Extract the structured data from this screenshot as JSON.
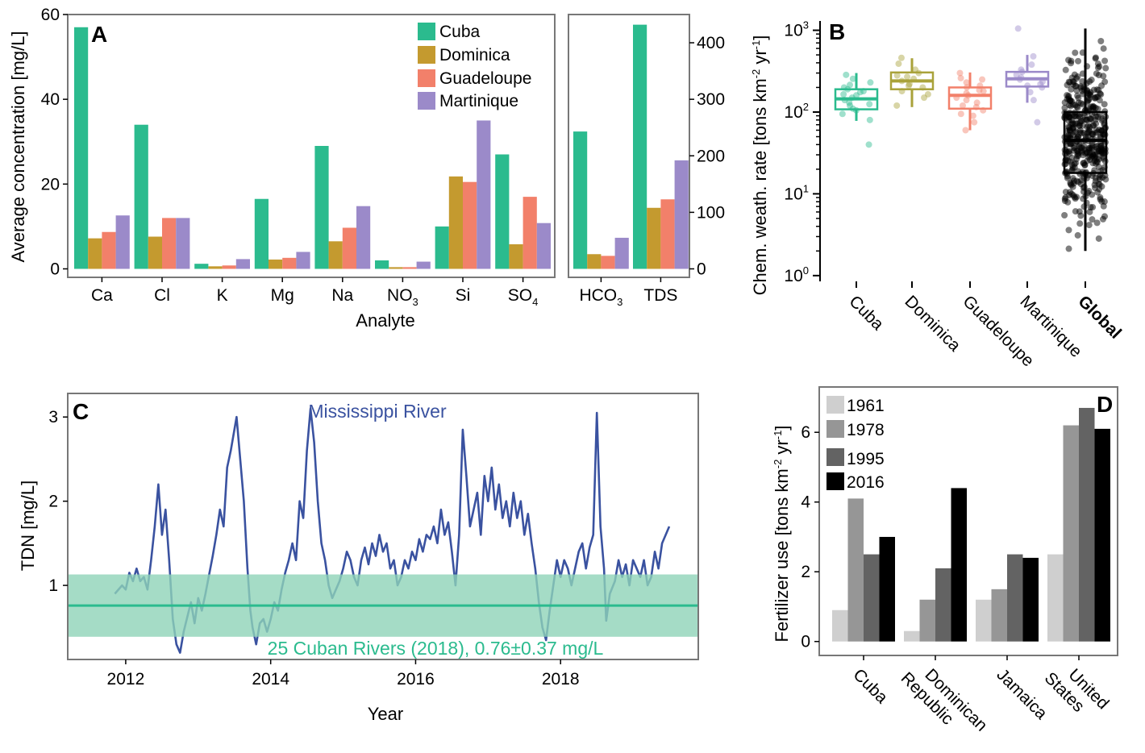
{
  "colors": {
    "Cuba": "#2bbb8e",
    "Dominica": "#c49a2f",
    "Guadeloupe": "#f2806a",
    "Martinique": "#9b8ac9",
    "B_Cuba": "#2bbb8e",
    "B_Dominica": "#a9a23a",
    "B_Guadeloupe": "#f2806a",
    "B_Martinique": "#9b8ac9",
    "B_Global": "#000000",
    "mississippi": "#3a52a0",
    "cuban_band": "#8fd3b8",
    "cuban_line": "#2bbb8e",
    "D_1961": "#cfcfcf",
    "D_1978": "#969696",
    "D_1995": "#636363",
    "D_2016": "#000000"
  },
  "panels": {
    "A": {
      "letter": "A",
      "ylabel": "Average concentration [mg/L]",
      "xlabel": "Analyte",
      "left_ticks": [
        "0",
        "20",
        "40",
        "60"
      ],
      "right_ticks": [
        "0",
        "100",
        "200",
        "300",
        "400"
      ],
      "legend": [
        "Cuba",
        "Dominica",
        "Guadeloupe",
        "Martinique"
      ],
      "cat_left": [
        "Ca",
        "Cl",
        "K",
        "Mg",
        "Na",
        "NO",
        "Si",
        "SO"
      ],
      "sub_left": [
        "",
        "",
        "",
        "",
        "",
        "3",
        "",
        "4"
      ],
      "cat_right": [
        "HCO",
        "TDS"
      ],
      "sub_right": [
        "3",
        ""
      ]
    },
    "B": {
      "letter": "B",
      "ylabel_main": "Chem. weath. rate [tons km",
      "ylabel_sup1": "-2",
      "ylabel_mid": " yr",
      "ylabel_sup2": "-1",
      "ylabel_end": "]",
      "tick_base": "10",
      "tick_exp": [
        "0",
        "1",
        "2",
        "3"
      ],
      "groups": [
        "Cuba",
        "Dominica",
        "Guadeloupe",
        "Martinique",
        "Global"
      ]
    },
    "C": {
      "letter": "C",
      "ylabel": "TDN [mg/L]",
      "xlabel": "Year",
      "yticks": [
        "1",
        "2",
        "3"
      ],
      "xticks": [
        "2012",
        "2014",
        "2016",
        "2018"
      ],
      "label_miss": "Mississippi River",
      "label_cuba": "25 Cuban Rivers (2018), 0.76±0.37 mg/L"
    },
    "D": {
      "letter": "D",
      "ylabel_main": "Fertilizer use [tons km",
      "ylabel_sup1": "-2",
      "ylabel_mid": " yr",
      "ylabel_sup2": "-1",
      "ylabel_end": "]",
      "yticks": [
        "0",
        "2",
        "4",
        "6"
      ],
      "legend": [
        "1961",
        "1978",
        "1995",
        "2016"
      ],
      "cat_lines": [
        [
          "Cuba"
        ],
        [
          "Dominican",
          "Republic"
        ],
        [
          "Jamaica"
        ],
        [
          "United",
          "States"
        ]
      ]
    }
  },
  "chart_data": [
    {
      "panel": "A",
      "type": "bar",
      "categories": [
        "Ca",
        "Cl",
        "K",
        "Mg",
        "Na",
        "NO3",
        "Si",
        "SO4"
      ],
      "series": [
        {
          "name": "Cuba",
          "values": [
            57,
            34,
            1.2,
            16.5,
            29,
            2,
            10,
            27
          ]
        },
        {
          "name": "Dominica",
          "values": [
            7.2,
            7.6,
            0.6,
            2.2,
            6.5,
            0.4,
            21.8,
            5.8
          ]
        },
        {
          "name": "Guadeloupe",
          "values": [
            8.7,
            12,
            0.8,
            2.6,
            9.7,
            0.4,
            20.5,
            17
          ]
        },
        {
          "name": "Martinique",
          "values": [
            12.6,
            12,
            2.3,
            4,
            14.8,
            1.7,
            35,
            10.8
          ]
        }
      ],
      "ylabel": "Average concentration [mg/L]",
      "xlabel": "Analyte",
      "ylim": [
        -2,
        60
      ]
    },
    {
      "panel": "A-right",
      "type": "bar",
      "categories": [
        "HCO3",
        "TDS"
      ],
      "series": [
        {
          "name": "Cuba",
          "values": [
            243,
            432
          ]
        },
        {
          "name": "Dominica",
          "values": [
            26,
            108
          ]
        },
        {
          "name": "Guadeloupe",
          "values": [
            23,
            123
          ]
        },
        {
          "name": "Martinique",
          "values": [
            55,
            192
          ]
        }
      ],
      "ylim": [
        -15,
        450
      ]
    },
    {
      "panel": "B",
      "type": "box",
      "scale": "log10",
      "ylim": [
        0.85,
        1300
      ],
      "groups": [
        {
          "name": "Cuba",
          "q1": 108,
          "median": 145,
          "q3": 190,
          "wlo": 78,
          "whi": 300,
          "points": [
            40,
            80,
            95,
            110,
            125,
            140,
            150,
            160,
            175,
            190,
            200,
            230,
            255,
            285,
            105,
            130,
            165,
            180,
            120,
            215
          ]
        },
        {
          "name": "Dominica",
          "q1": 190,
          "median": 240,
          "q3": 305,
          "wlo": 115,
          "whi": 455,
          "points": [
            120,
            150,
            180,
            200,
            220,
            240,
            255,
            270,
            300,
            330,
            390,
            460,
            210,
            280,
            165
          ]
        },
        {
          "name": "Guadeloupe",
          "q1": 110,
          "median": 160,
          "q3": 200,
          "wlo": 60,
          "whi": 305,
          "points": [
            60,
            75,
            90,
            105,
            120,
            140,
            160,
            170,
            185,
            200,
            230,
            260,
            300,
            115,
            150,
            95,
            130,
            210,
            180,
            250
          ]
        },
        {
          "name": "Martinique",
          "q1": 205,
          "median": 255,
          "q3": 310,
          "wlo": 130,
          "whi": 500,
          "points": [
            75,
            140,
            175,
            210,
            235,
            250,
            265,
            285,
            310,
            380,
            480,
            1050,
            220,
            200,
            330
          ]
        },
        {
          "name": "Global",
          "q1": 18,
          "median": 45,
          "q3": 100,
          "wlo": 2,
          "whi": 1050
        }
      ]
    },
    {
      "panel": "C",
      "type": "line",
      "xlabel": "Year",
      "ylabel": "TDN [mg/L]",
      "xlim": [
        2011.2,
        2019.9
      ],
      "ylim": [
        0.12,
        3.28
      ],
      "series": [
        {
          "name": "Mississippi River",
          "points": [
            [
              2011.85,
              0.9
            ],
            [
              2011.95,
              1.0
            ],
            [
              2012.0,
              0.95
            ],
            [
              2012.05,
              1.15
            ],
            [
              2012.1,
              1.05
            ],
            [
              2012.15,
              1.2
            ],
            [
              2012.2,
              1.05
            ],
            [
              2012.25,
              1.1
            ],
            [
              2012.3,
              0.95
            ],
            [
              2012.35,
              1.3
            ],
            [
              2012.4,
              1.7
            ],
            [
              2012.45,
              2.2
            ],
            [
              2012.5,
              1.6
            ],
            [
              2012.55,
              1.9
            ],
            [
              2012.6,
              1.3
            ],
            [
              2012.65,
              0.6
            ],
            [
              2012.7,
              0.3
            ],
            [
              2012.75,
              0.2
            ],
            [
              2012.8,
              0.45
            ],
            [
              2012.9,
              0.8
            ],
            [
              2012.95,
              0.55
            ],
            [
              2013.0,
              0.85
            ],
            [
              2013.05,
              0.7
            ],
            [
              2013.1,
              0.9
            ],
            [
              2013.2,
              1.35
            ],
            [
              2013.25,
              1.6
            ],
            [
              2013.3,
              1.9
            ],
            [
              2013.35,
              1.7
            ],
            [
              2013.4,
              2.4
            ],
            [
              2013.45,
              2.6
            ],
            [
              2013.5,
              2.85
            ],
            [
              2013.53,
              3.0
            ],
            [
              2013.58,
              2.5
            ],
            [
              2013.63,
              2.0
            ],
            [
              2013.68,
              1.2
            ],
            [
              2013.72,
              0.7
            ],
            [
              2013.75,
              0.5
            ],
            [
              2013.8,
              0.3
            ],
            [
              2013.85,
              0.55
            ],
            [
              2013.9,
              0.6
            ],
            [
              2013.95,
              0.45
            ],
            [
              2014.0,
              0.6
            ],
            [
              2014.05,
              0.8
            ],
            [
              2014.1,
              0.7
            ],
            [
              2014.15,
              0.95
            ],
            [
              2014.2,
              1.15
            ],
            [
              2014.25,
              1.3
            ],
            [
              2014.3,
              1.5
            ],
            [
              2014.35,
              1.3
            ],
            [
              2014.4,
              2.0
            ],
            [
              2014.45,
              1.8
            ],
            [
              2014.5,
              2.6
            ],
            [
              2014.55,
              3.1
            ],
            [
              2014.6,
              2.7
            ],
            [
              2014.65,
              2.0
            ],
            [
              2014.7,
              1.5
            ],
            [
              2014.75,
              1.3
            ],
            [
              2014.8,
              1.0
            ],
            [
              2014.85,
              0.85
            ],
            [
              2014.9,
              0.95
            ],
            [
              2014.95,
              1.05
            ],
            [
              2015.0,
              1.2
            ],
            [
              2015.05,
              1.4
            ],
            [
              2015.1,
              1.3
            ],
            [
              2015.15,
              1.1
            ],
            [
              2015.2,
              1.0
            ],
            [
              2015.25,
              1.3
            ],
            [
              2015.3,
              1.45
            ],
            [
              2015.35,
              1.25
            ],
            [
              2015.4,
              1.5
            ],
            [
              2015.45,
              1.35
            ],
            [
              2015.5,
              1.6
            ],
            [
              2015.55,
              1.4
            ],
            [
              2015.6,
              1.5
            ],
            [
              2015.65,
              1.2
            ],
            [
              2015.7,
              1.3
            ],
            [
              2015.75,
              1.0
            ],
            [
              2015.8,
              1.1
            ],
            [
              2015.85,
              1.3
            ],
            [
              2015.9,
              1.2
            ],
            [
              2015.95,
              1.4
            ],
            [
              2016.0,
              1.3
            ],
            [
              2016.05,
              1.55
            ],
            [
              2016.1,
              1.4
            ],
            [
              2016.15,
              1.6
            ],
            [
              2016.2,
              1.55
            ],
            [
              2016.25,
              1.7
            ],
            [
              2016.3,
              1.5
            ],
            [
              2016.35,
              1.9
            ],
            [
              2016.4,
              1.6
            ],
            [
              2016.45,
              1.75
            ],
            [
              2016.5,
              1.4
            ],
            [
              2016.55,
              1.0
            ],
            [
              2016.6,
              1.6
            ],
            [
              2016.65,
              2.85
            ],
            [
              2016.7,
              2.3
            ],
            [
              2016.75,
              1.7
            ],
            [
              2016.8,
              1.9
            ],
            [
              2016.85,
              2.1
            ],
            [
              2016.9,
              1.6
            ],
            [
              2016.95,
              2.3
            ],
            [
              2017.0,
              2.0
            ],
            [
              2017.05,
              2.4
            ],
            [
              2017.1,
              1.9
            ],
            [
              2017.15,
              2.2
            ],
            [
              2017.2,
              1.8
            ],
            [
              2017.25,
              2.0
            ],
            [
              2017.3,
              1.7
            ],
            [
              2017.35,
              2.1
            ],
            [
              2017.4,
              1.8
            ],
            [
              2017.45,
              2.0
            ],
            [
              2017.5,
              1.6
            ],
            [
              2017.55,
              1.85
            ],
            [
              2017.6,
              1.5
            ],
            [
              2017.65,
              1.2
            ],
            [
              2017.7,
              0.8
            ],
            [
              2017.75,
              0.5
            ],
            [
              2017.8,
              0.35
            ],
            [
              2017.85,
              0.7
            ],
            [
              2017.9,
              1.0
            ],
            [
              2017.95,
              1.3
            ],
            [
              2018.0,
              1.1
            ],
            [
              2018.05,
              1.3
            ],
            [
              2018.1,
              1.2
            ],
            [
              2018.15,
              1.0
            ],
            [
              2018.2,
              1.2
            ],
            [
              2018.25,
              1.4
            ],
            [
              2018.3,
              1.5
            ],
            [
              2018.35,
              1.2
            ],
            [
              2018.4,
              1.45
            ],
            [
              2018.45,
              1.6
            ],
            [
              2018.5,
              3.05
            ],
            [
              2018.55,
              1.7
            ],
            [
              2018.6,
              1.2
            ],
            [
              2018.63,
              0.58
            ],
            [
              2018.68,
              0.9
            ],
            [
              2018.75,
              1.05
            ],
            [
              2018.8,
              1.3
            ],
            [
              2018.85,
              1.1
            ],
            [
              2018.9,
              1.25
            ],
            [
              2018.95,
              1.0
            ],
            [
              2019.0,
              1.3
            ],
            [
              2019.05,
              1.2
            ],
            [
              2019.1,
              1.1
            ],
            [
              2019.15,
              1.3
            ],
            [
              2019.2,
              1.0
            ],
            [
              2019.25,
              1.1
            ],
            [
              2019.3,
              1.4
            ],
            [
              2019.35,
              1.2
            ],
            [
              2019.4,
              1.5
            ],
            [
              2019.45,
              1.6
            ],
            [
              2019.5,
              1.7
            ]
          ]
        },
        {
          "name": "25 Cuban Rivers (2018)",
          "mean": 0.76,
          "sd": 0.37
        }
      ]
    },
    {
      "panel": "D",
      "type": "bar",
      "categories": [
        "Cuba",
        "Dominican Republic",
        "Jamaica",
        "United States"
      ],
      "series": [
        {
          "name": "1961",
          "values": [
            0.9,
            0.3,
            1.2,
            2.5
          ]
        },
        {
          "name": "1978",
          "values": [
            4.1,
            1.2,
            1.5,
            6.2
          ]
        },
        {
          "name": "1995",
          "values": [
            2.5,
            2.1,
            2.5,
            6.7
          ]
        },
        {
          "name": "2016",
          "values": [
            3.0,
            4.4,
            2.4,
            6.1
          ]
        }
      ],
      "ylabel": "Fertilizer use [tons km-2 yr-1]",
      "ylim": [
        -0.4,
        7.3
      ]
    }
  ]
}
